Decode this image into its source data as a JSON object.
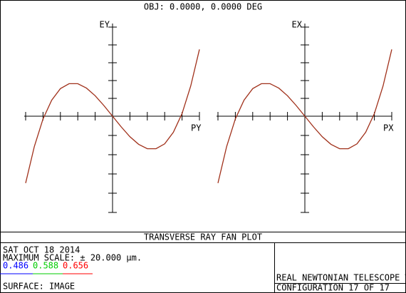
{
  "title": "OBJ: 0.0000, 0.0000 DEG",
  "chart_data": [
    {
      "type": "line",
      "y_label": "EY",
      "x_label": "PY",
      "xlim": [
        -1,
        1
      ],
      "ylim": [
        -20,
        20
      ],
      "x": [
        -1,
        -0.9,
        -0.8,
        -0.7,
        -0.6,
        -0.5,
        -0.4,
        -0.3,
        -0.2,
        -0.1,
        0,
        0.1,
        0.2,
        0.3,
        0.4,
        0.5,
        0.6,
        0.7,
        0.8,
        0.9,
        1
      ],
      "series": [
        {
          "color": "#a0301a",
          "values": [
            -15,
            -6.8,
            -0.6,
            3.6,
            6.2,
            7.3,
            7.3,
            6.3,
            4.6,
            2.4,
            0,
            -2.4,
            -4.6,
            -6.3,
            -7.3,
            -7.3,
            -6.2,
            -3.6,
            0.6,
            6.8,
            15
          ]
        }
      ]
    },
    {
      "type": "line",
      "y_label": "EX",
      "x_label": "PX",
      "xlim": [
        -1,
        1
      ],
      "ylim": [
        -20,
        20
      ],
      "x": [
        -1,
        -0.9,
        -0.8,
        -0.7,
        -0.6,
        -0.5,
        -0.4,
        -0.3,
        -0.2,
        -0.1,
        0,
        0.1,
        0.2,
        0.3,
        0.4,
        0.5,
        0.6,
        0.7,
        0.8,
        0.9,
        1
      ],
      "series": [
        {
          "color": "#a0301a",
          "values": [
            -15,
            -6.8,
            -0.6,
            3.6,
            6.2,
            7.3,
            7.3,
            6.3,
            4.6,
            2.4,
            0,
            -2.4,
            -4.6,
            -6.3,
            -7.3,
            -7.3,
            -6.2,
            -3.6,
            0.6,
            6.8,
            15
          ]
        }
      ]
    }
  ],
  "footer": {
    "plot_name": "TRANSVERSE RAY FAN PLOT",
    "date": "SAT OCT 18 2014",
    "scale": "MAXIMUM SCALE: ± 20.000 µm.",
    "wavelengths": [
      {
        "label": "0.486",
        "color": "#0000ff"
      },
      {
        "label": "0.588",
        "color": "#00cc00"
      },
      {
        "label": "0.656",
        "color": "#ff0000"
      }
    ],
    "surface": "SURFACE: IMAGE",
    "lens_title": "REAL NEWTONIAN TELESCOPE WITH COUPLING WIDUT LENS.ZMX",
    "configuration": "CONFIGURATION 17 OF 17"
  }
}
